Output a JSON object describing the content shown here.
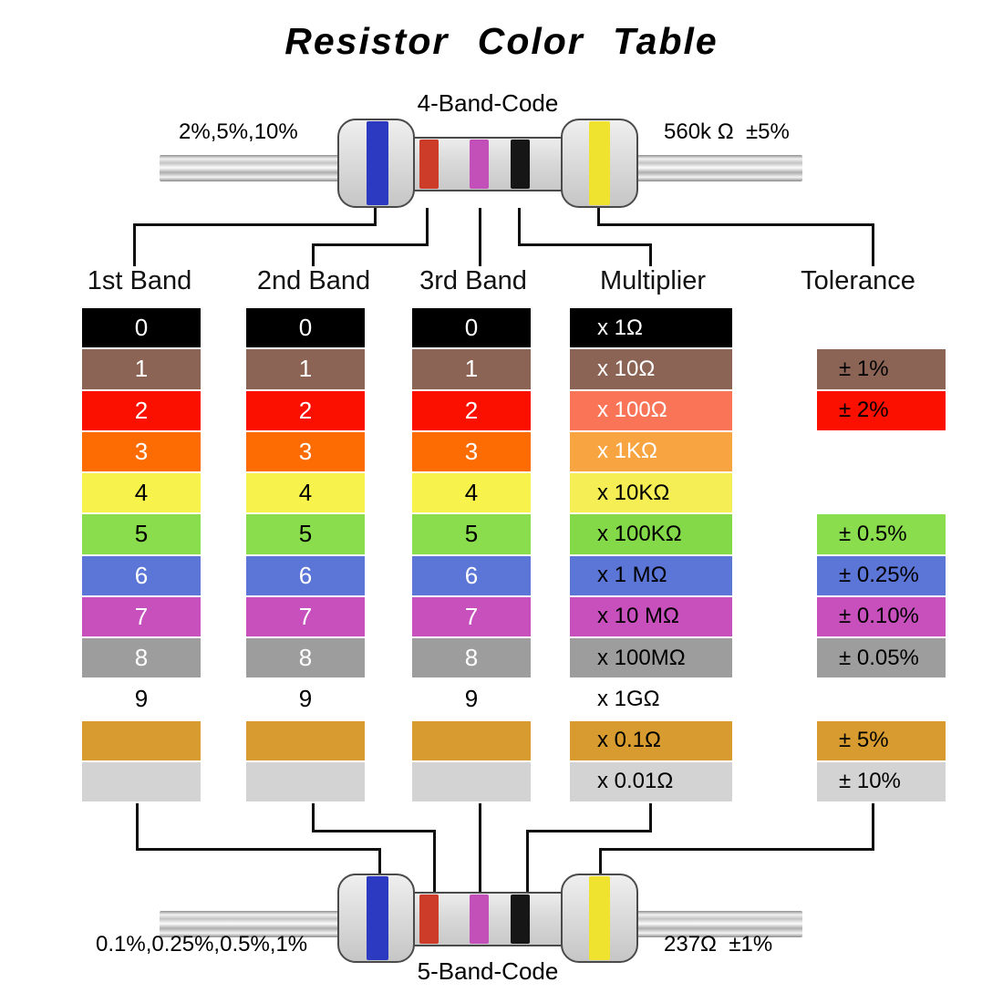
{
  "title": "Resistor Color Table",
  "top_resistor": {
    "code_label": "4-Band-Code",
    "left_label": "2%,5%,10%",
    "right_label": "560k Ω  ±5%",
    "bands": [
      "blue",
      "red",
      "violet",
      "black",
      "yellow"
    ]
  },
  "bottom_resistor": {
    "code_label": "5-Band-Code",
    "left_label": "0.1%,0.25%,0.5%,1%",
    "right_label": "237Ω  ±1%",
    "bands": [
      "blue",
      "red",
      "violet",
      "black",
      "yellow"
    ]
  },
  "band_colors": {
    "blue": "#2b3ac0",
    "red": "#cd3b29",
    "violet": "#c250b8",
    "black": "#161616",
    "yellow": "#f0e32f"
  },
  "headers": [
    "1st Band",
    "2nd Band",
    "3rd Band",
    "Multiplier",
    "Tolerance"
  ],
  "band_rows": [
    {
      "color_name": "black",
      "digit": "0",
      "bg": "#000000",
      "fg": "#ffffff"
    },
    {
      "color_name": "brown",
      "digit": "1",
      "bg": "#8b6455",
      "fg": "#ffffff"
    },
    {
      "color_name": "red",
      "digit": "2",
      "bg": "#fb1000",
      "fg": "#ffffff"
    },
    {
      "color_name": "orange",
      "digit": "3",
      "bg": "#fc6c03",
      "fg": "#ffffff"
    },
    {
      "color_name": "yellow",
      "digit": "4",
      "bg": "#f8f24d",
      "fg": "#000000"
    },
    {
      "color_name": "green",
      "digit": "5",
      "bg": "#8ade4d",
      "fg": "#000000"
    },
    {
      "color_name": "blue",
      "digit": "6",
      "bg": "#5b76d6",
      "fg": "#ffffff"
    },
    {
      "color_name": "violet",
      "digit": "7",
      "bg": "#c750bd",
      "fg": "#ffffff"
    },
    {
      "color_name": "gray",
      "digit": "8",
      "bg": "#9d9d9d",
      "fg": "#ffffff"
    },
    {
      "color_name": "white",
      "digit": "9",
      "bg": "#ffffff",
      "fg": "#000000"
    },
    {
      "color_name": "gold",
      "digit": "",
      "bg": "#d79b30",
      "fg": "#000000"
    },
    {
      "color_name": "silver",
      "digit": "",
      "bg": "#d3d3d3",
      "fg": "#000000"
    }
  ],
  "multiplier_rows": [
    {
      "color_name": "black",
      "label": "x 1Ω",
      "bg": "#000000",
      "fg": "#ffffff"
    },
    {
      "color_name": "brown",
      "label": "x 10Ω",
      "bg": "#8b6455",
      "fg": "#ffffff"
    },
    {
      "color_name": "red",
      "label": "x 100Ω",
      "bg": "#fa7557",
      "fg": "#ffffff"
    },
    {
      "color_name": "orange",
      "label": "x 1KΩ",
      "bg": "#f7a441",
      "fg": "#ffffff"
    },
    {
      "color_name": "yellow",
      "label": "x 10KΩ",
      "bg": "#f5ee55",
      "fg": "#000000"
    },
    {
      "color_name": "green",
      "label": "x 100KΩ",
      "bg": "#84d948",
      "fg": "#000000"
    },
    {
      "color_name": "blue",
      "label": "x 1 MΩ",
      "bg": "#5b76d6",
      "fg": "#000000"
    },
    {
      "color_name": "violet",
      "label": "x 10 MΩ",
      "bg": "#c750bd",
      "fg": "#000000"
    },
    {
      "color_name": "gray",
      "label": "x 100MΩ",
      "bg": "#9d9d9d",
      "fg": "#000000"
    },
    {
      "color_name": "white",
      "label": "x 1GΩ",
      "bg": "#ffffff",
      "fg": "#000000"
    },
    {
      "color_name": "gold",
      "label": "x 0.1Ω",
      "bg": "#d79b30",
      "fg": "#000000"
    },
    {
      "color_name": "silver",
      "label": "x 0.01Ω",
      "bg": "#d3d3d3",
      "fg": "#000000"
    }
  ],
  "tolerance_rows": [
    {
      "color_name": "brown",
      "label": "± 1%",
      "bg": "#8b6455",
      "fg": "#000000",
      "row": 1
    },
    {
      "color_name": "red",
      "label": "± 2%",
      "bg": "#fb1000",
      "fg": "#000000",
      "row": 2
    },
    {
      "color_name": "green",
      "label": "± 0.5%",
      "bg": "#8ade4d",
      "fg": "#000000",
      "row": 5
    },
    {
      "color_name": "blue",
      "label": "± 0.25%",
      "bg": "#5b76d6",
      "fg": "#000000",
      "row": 6
    },
    {
      "color_name": "violet",
      "label": "± 0.10%",
      "bg": "#c750bd",
      "fg": "#000000",
      "row": 7
    },
    {
      "color_name": "gray",
      "label": "± 0.05%",
      "bg": "#9d9d9d",
      "fg": "#000000",
      "row": 8
    },
    {
      "color_name": "gold",
      "label": "± 5%",
      "bg": "#d79b30",
      "fg": "#000000",
      "row": 10
    },
    {
      "color_name": "silver",
      "label": "± 10%",
      "bg": "#d3d3d3",
      "fg": "#000000",
      "row": 11
    }
  ]
}
